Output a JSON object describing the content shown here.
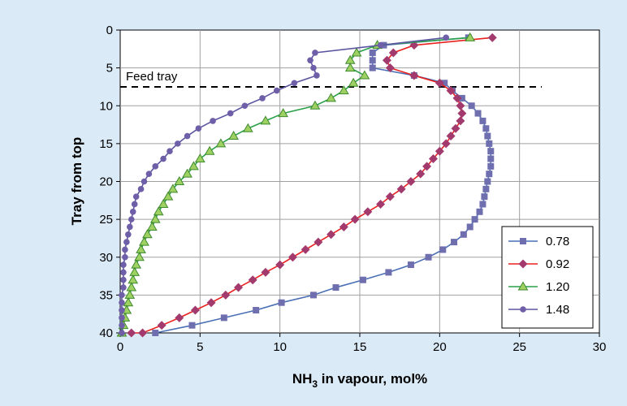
{
  "chart_data": {
    "type": "line",
    "xlabel_main": "NH",
    "xlabel_sub": "3",
    "xlabel_rest": " in vapour, mol%",
    "ylabel": "Tray from top",
    "xlim": [
      0,
      30
    ],
    "ylim": [
      0,
      40
    ],
    "y_inverted": true,
    "x_ticks": [
      "0",
      "5",
      "10",
      "15",
      "20",
      "25",
      "30"
    ],
    "y_ticks": [
      "0",
      "5",
      "10",
      "15",
      "20",
      "25",
      "30",
      "35",
      "40"
    ],
    "grid": true,
    "legend_position": "bottom-right",
    "annotation": {
      "text": "Feed tray",
      "tray": 7.5
    },
    "series": [
      {
        "name": "0.78",
        "color": "#5b61a8",
        "marker": "square",
        "x": [
          21.8,
          16.5,
          15.8,
          15.8,
          15.8,
          18.4,
          20.3,
          20.8,
          21.4,
          22.0,
          22.4,
          22.7,
          22.9,
          23.0,
          23.1,
          23.2,
          23.2,
          23.2,
          23.1,
          23.0,
          22.9,
          22.8,
          22.7,
          22.5,
          22.2,
          21.9,
          21.5,
          20.9,
          20.2,
          19.3,
          18.2,
          16.8,
          15.2,
          13.5,
          12.1,
          10.1,
          8.5,
          6.5,
          4.5,
          2.2
        ],
        "y": [
          1,
          2,
          3,
          4,
          5,
          6,
          7,
          8,
          9,
          10,
          11,
          12,
          13,
          14,
          15,
          16,
          17,
          18,
          19,
          20,
          21,
          22,
          23,
          24,
          25,
          26,
          27,
          28,
          29,
          30,
          31,
          32,
          33,
          34,
          35,
          36,
          37,
          38,
          39,
          40
        ]
      },
      {
        "name": "0.92",
        "color": "#e8211f",
        "marker": "diamond",
        "x": [
          23.3,
          18.4,
          17.1,
          16.7,
          16.9,
          18.4,
          20.0,
          20.7,
          21.1,
          21.3,
          21.4,
          21.3,
          21.0,
          20.7,
          20.4,
          20.0,
          19.6,
          19.2,
          18.8,
          18.2,
          17.6,
          16.9,
          16.3,
          15.5,
          14.7,
          14.0,
          13.2,
          12.4,
          11.6,
          10.8,
          10.0,
          9.1,
          8.3,
          7.4,
          6.6,
          5.7,
          4.7,
          3.7,
          2.6,
          1.4,
          0.7
        ],
        "y": [
          1,
          2,
          3,
          4,
          5,
          6,
          7,
          8,
          9,
          10,
          11,
          12,
          13,
          14,
          15,
          16,
          17,
          18,
          19,
          20,
          21,
          22,
          23,
          24,
          25,
          26,
          27,
          28,
          29,
          30,
          31,
          32,
          33,
          34,
          35,
          36,
          37,
          38,
          39,
          40,
          40
        ]
      },
      {
        "name": "1.20",
        "color": "#2aa148",
        "marker": "triangle",
        "x": [
          21.9,
          16.1,
          14.8,
          14.4,
          14.4,
          15.3,
          14.6,
          14.0,
          13.2,
          12.2,
          10.2,
          9.1,
          8.0,
          7.1,
          6.3,
          5.6,
          5.0,
          4.6,
          4.2,
          3.7,
          3.3,
          3.0,
          2.7,
          2.4,
          2.2,
          2.0,
          1.7,
          1.5,
          1.3,
          1.2,
          1.0,
          0.9,
          0.8,
          0.7,
          0.6,
          0.5,
          0.4,
          0.3,
          0.2,
          0.1
        ],
        "y": [
          1,
          2,
          3,
          4,
          5,
          6,
          7,
          8,
          9,
          10,
          11,
          12,
          13,
          14,
          15,
          16,
          17,
          18,
          19,
          20,
          21,
          22,
          23,
          24,
          25,
          26,
          27,
          28,
          29,
          30,
          31,
          32,
          33,
          34,
          35,
          36,
          37,
          38,
          39,
          40
        ]
      },
      {
        "name": "1.48",
        "color": "#6b5aa3",
        "marker": "circle",
        "x": [
          20.4,
          16.3,
          12.2,
          11.9,
          12.1,
          12.3,
          10.9,
          9.8,
          8.9,
          7.8,
          6.9,
          5.8,
          4.9,
          4.2,
          3.6,
          3.1,
          2.7,
          2.2,
          1.8,
          1.5,
          1.3,
          1.0,
          0.9,
          0.8,
          0.7,
          0.6,
          0.5,
          0.4,
          0.3,
          0.3,
          0.2,
          0.2,
          0.2,
          0.2,
          0.1,
          0.1,
          0.1,
          0.1,
          0.1,
          0.1
        ],
        "y": [
          1,
          2,
          3,
          4,
          5,
          6,
          7,
          8,
          9,
          10,
          11,
          12,
          13,
          14,
          15,
          16,
          17,
          18,
          19,
          20,
          21,
          22,
          23,
          24,
          25,
          26,
          27,
          28,
          29,
          30,
          31,
          32,
          33,
          34,
          35,
          36,
          37,
          38,
          39,
          40
        ]
      }
    ]
  }
}
